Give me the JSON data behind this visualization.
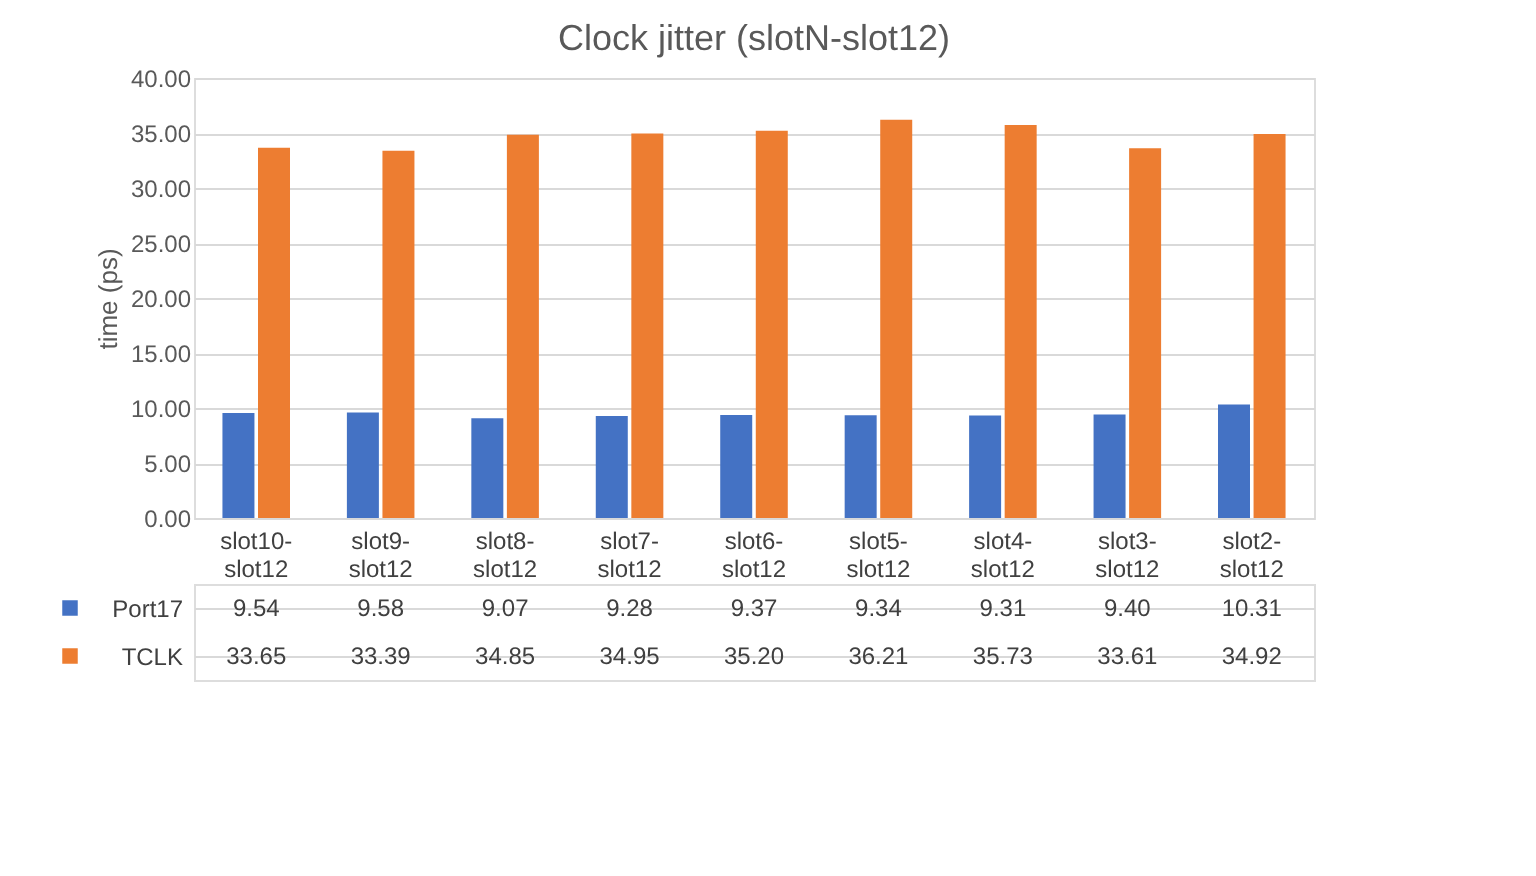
{
  "chart_data": {
    "type": "bar",
    "title": "Clock jitter (slotN-slot12)",
    "ylabel": "time (ps)",
    "categories": [
      "slot10-slot12",
      "slot9-slot12",
      "slot8-slot12",
      "slot7-slot12",
      "slot6-slot12",
      "slot5-slot12",
      "slot4-slot12",
      "slot3-slot12",
      "slot2-slot12"
    ],
    "series": [
      {
        "name": "Port17",
        "color": "#4472c4",
        "values": [
          9.54,
          9.58,
          9.07,
          9.28,
          9.37,
          9.34,
          9.31,
          9.4,
          10.31
        ],
        "value_labels": [
          "9.54",
          "9.58",
          "9.07",
          "9.28",
          "9.37",
          "9.34",
          "9.31",
          "9.40",
          "10.31"
        ]
      },
      {
        "name": "TCLK",
        "color": "#ed7d31",
        "values": [
          33.65,
          33.39,
          34.85,
          34.95,
          35.2,
          36.21,
          35.73,
          33.61,
          34.92
        ],
        "value_labels": [
          "33.65",
          "33.39",
          "34.85",
          "34.95",
          "35.20",
          "36.21",
          "35.73",
          "33.61",
          "34.92"
        ]
      }
    ],
    "ylim": [
      0,
      40
    ],
    "yticks": [
      {
        "value": 0,
        "label": "0.00"
      },
      {
        "value": 5,
        "label": "5.00"
      },
      {
        "value": 10,
        "label": "10.00"
      },
      {
        "value": 15,
        "label": "15.00"
      },
      {
        "value": 20,
        "label": "20.00"
      },
      {
        "value": 25,
        "label": "25.00"
      },
      {
        "value": 30,
        "label": "30.00"
      },
      {
        "value": 35,
        "label": "35.00"
      },
      {
        "value": 40,
        "label": "40.00"
      }
    ],
    "grid": "y",
    "legend": "bottom"
  }
}
